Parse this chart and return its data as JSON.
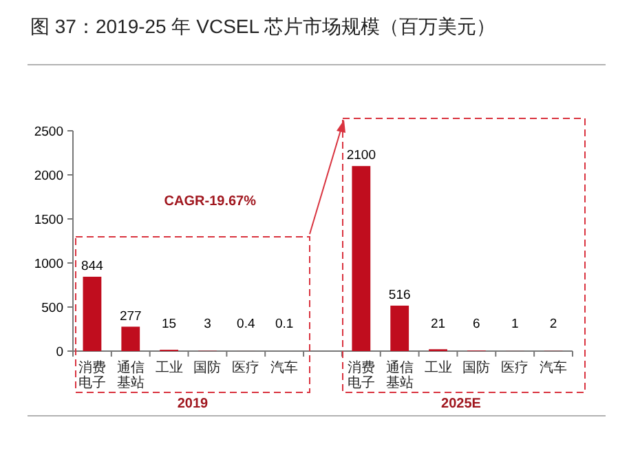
{
  "chart_data": {
    "type": "bar",
    "title": "图 37：2019-25 年 VCSEL 芯片市场规模（百万美元）",
    "categories": [
      "消费电子",
      "通信基站",
      "工业",
      "国防",
      "医疗",
      "汽车",
      null,
      "消费电子",
      "通信基站",
      "工业",
      "国防",
      "医疗",
      "汽车"
    ],
    "values": [
      844,
      277,
      15,
      3,
      0.4,
      0.1,
      null,
      2100,
      516,
      21,
      6,
      1,
      2
    ],
    "color": "#c00d1e",
    "ylim": [
      0,
      2500
    ],
    "yticks": [
      0,
      500,
      1000,
      1500,
      2000,
      2500
    ],
    "data_labels": true,
    "annotations": [
      "CAGR-19.67%",
      "2019",
      "2025E"
    ]
  }
}
